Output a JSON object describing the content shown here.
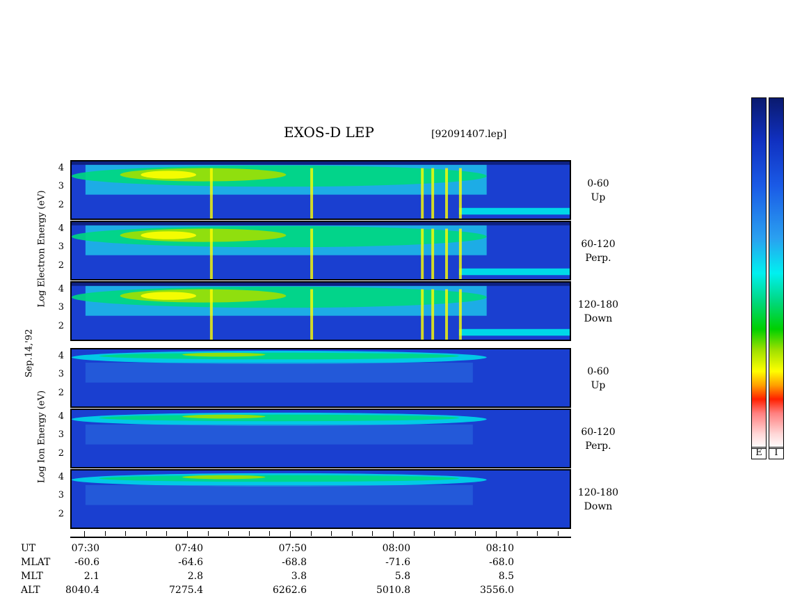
{
  "title": "EXOS-D LEP",
  "file": "[92091407.lep]",
  "date_label": "Sep.14,'92",
  "electron_ylabel": "Log   Electron   Energy (eV)",
  "ion_ylabel": "Log   Ion   Energy (eV)",
  "panels": [
    {
      "species": "electron",
      "pitch": "0-60",
      "dir": "Up"
    },
    {
      "species": "electron",
      "pitch": "60-120",
      "dir": "Perp."
    },
    {
      "species": "electron",
      "pitch": "120-180",
      "dir": "Down"
    },
    {
      "species": "ion",
      "pitch": "0-60",
      "dir": "Up"
    },
    {
      "species": "ion",
      "pitch": "60-120",
      "dir": "Perp."
    },
    {
      "species": "ion",
      "pitch": "120-180",
      "dir": "Down"
    }
  ],
  "yticks": [
    "4",
    "3",
    "2"
  ],
  "rows": {
    "UT": [
      "07:30",
      "07:40",
      "07:50",
      "08:00",
      "08:10"
    ],
    "MLAT": [
      "-60.6",
      "-64.6",
      "-68.8",
      "-71.6",
      "-68.0"
    ],
    "MLT": [
      "2.1",
      "2.8",
      "3.8",
      "5.8",
      "8.5"
    ],
    "ALT": [
      "8040.4",
      "7275.4",
      "6262.6",
      "5010.8",
      "3556.0"
    ]
  },
  "colorbar_labels": [
    "E",
    "I"
  ],
  "colors": {
    "background": "#1a3fd0",
    "high": "#ffff00",
    "mid": "#00e05a",
    "low": "#00d8e8"
  },
  "chart_data": {
    "type": "heatmap",
    "title": "EXOS-D LEP",
    "x_ticks": [
      "07:30",
      "07:40",
      "07:50",
      "08:00",
      "08:10"
    ],
    "ylabel_electron": "Log Electron Energy (eV)",
    "ylabel_ion": "Log Ion Energy (eV)",
    "y_ticks": [
      2,
      3,
      4
    ],
    "panels": [
      "Electron 0-60 Up",
      "Electron 60-120 Perp.",
      "Electron 120-180 Down",
      "Ion 0-60 Up",
      "Ion 60-120 Perp.",
      "Ion 120-180 Down"
    ]
  }
}
